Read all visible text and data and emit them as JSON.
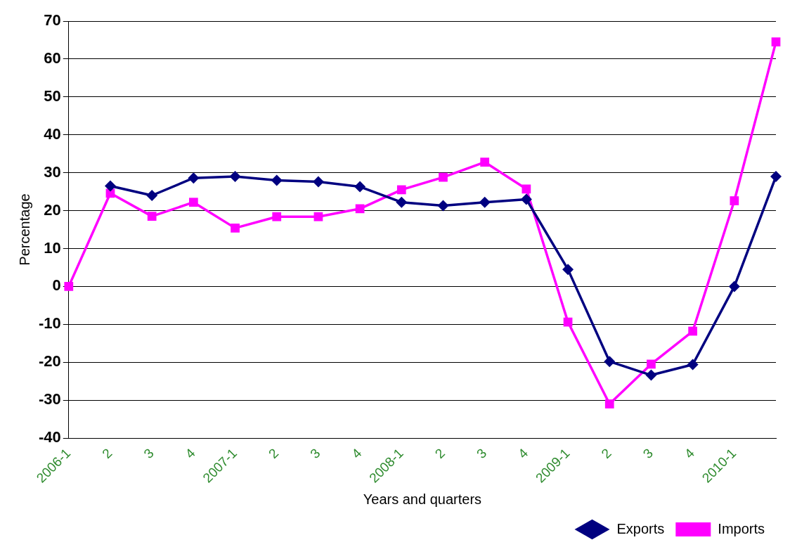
{
  "chart_data": {
    "type": "line",
    "xlabel": "Years and quarters",
    "ylabel": "Percentage",
    "categories": [
      "2006-1",
      "2",
      "3",
      "4",
      "2007-1",
      "2",
      "3",
      "4",
      "2008-1",
      "2",
      "3",
      "4",
      "2009-1",
      "2",
      "3",
      "4",
      "2010-1",
      null
    ],
    "series": [
      {
        "name": "Exports",
        "color": "#000080",
        "marker": "diamond",
        "values": [
          null,
          26.5,
          24,
          28.6,
          29,
          28,
          27.6,
          26.3,
          22.2,
          21.3,
          22.2,
          23,
          4.5,
          -19.8,
          -23.4,
          -20.6,
          0,
          29
        ]
      },
      {
        "name": "Imports",
        "color": "#ff00ff",
        "marker": "square",
        "values": [
          0,
          24.6,
          18.5,
          22.2,
          15.4,
          18.4,
          18.4,
          20.5,
          25.5,
          28.8,
          32.8,
          25.7,
          -9.4,
          -31,
          -20.5,
          -11.8,
          22.6,
          64.5
        ]
      }
    ],
    "ylim": [
      -40,
      70
    ],
    "yticks": [
      -40,
      -30,
      -20,
      -10,
      0,
      10,
      20,
      30,
      40,
      50,
      60,
      70
    ],
    "grid": "y",
    "legend": "bottom right"
  }
}
